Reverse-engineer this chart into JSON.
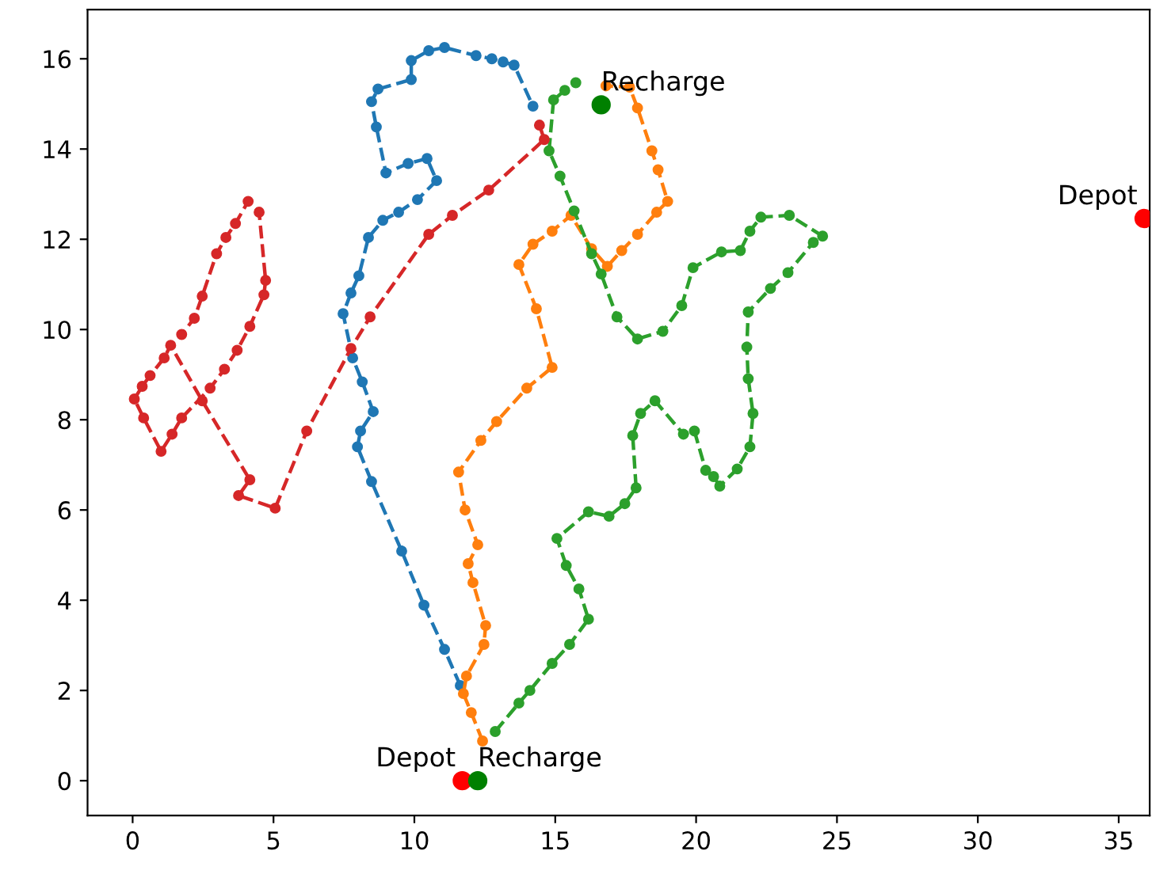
{
  "chart_data": {
    "type": "line",
    "marker": "circle",
    "line_style": "dashed",
    "grid": false,
    "xlim": [
      -1.6,
      36.1
    ],
    "ylim": [
      -0.77,
      17.09
    ],
    "xticks": [
      0,
      5,
      10,
      15,
      20,
      25,
      30,
      35
    ],
    "yticks": [
      0,
      2,
      4,
      6,
      8,
      10,
      12,
      14,
      16
    ],
    "series": [
      {
        "color": "#1f77b4",
        "x": [
          11.63,
          11.07,
          10.34,
          9.55,
          8.48,
          7.98,
          8.09,
          8.54,
          8.15,
          7.81,
          7.47,
          7.75,
          8.03,
          8.37,
          8.88,
          9.44,
          10.11,
          10.79,
          10.45,
          9.78,
          8.99,
          8.65,
          8.48,
          8.71,
          9.89,
          9.89,
          10.51,
          11.07,
          12.19,
          12.75,
          13.15,
          13.54,
          14.21
        ],
        "values": [
          2.11,
          2.91,
          3.89,
          5.09,
          6.63,
          7.4,
          7.75,
          8.18,
          8.84,
          9.37,
          10.35,
          10.81,
          11.19,
          12.04,
          12.42,
          12.6,
          12.88,
          13.3,
          13.79,
          13.68,
          13.47,
          14.49,
          15.05,
          15.33,
          15.54,
          15.96,
          16.18,
          16.25,
          16.07,
          16.0,
          15.93,
          15.86,
          14.95
        ]
      },
      {
        "color": "#ff7f0e",
        "x": [
          12.42,
          12.02,
          11.74,
          11.85,
          12.47,
          12.53,
          12.08,
          11.91,
          12.25,
          11.8,
          11.57,
          12.36,
          12.92,
          13.99,
          14.89,
          14.33,
          13.71,
          14.21,
          14.89,
          15.56,
          16.29,
          16.85,
          17.36,
          17.92,
          18.6,
          18.99,
          18.65,
          18.43,
          17.92,
          17.64,
          16.8
        ],
        "values": [
          0.88,
          1.51,
          1.93,
          2.32,
          3.02,
          3.44,
          4.39,
          4.81,
          5.23,
          6.0,
          6.84,
          7.54,
          7.96,
          8.7,
          9.16,
          10.46,
          11.44,
          11.89,
          12.18,
          12.53,
          11.79,
          11.4,
          11.75,
          12.11,
          12.6,
          12.84,
          13.54,
          13.96,
          14.91,
          15.37,
          15.4
        ]
      },
      {
        "color": "#2ca02c",
        "x": [
          12.87,
          13.71,
          14.1,
          14.89,
          15.51,
          16.18,
          15.84,
          15.39,
          15.06,
          16.18,
          16.91,
          17.47,
          17.87,
          17.75,
          18.03,
          18.54,
          19.55,
          19.94,
          20.34,
          20.62,
          20.84,
          21.46,
          21.91,
          22.02,
          21.85,
          21.8,
          21.85,
          22.64,
          23.26,
          24.16,
          24.49,
          23.31,
          22.3,
          21.91,
          21.57,
          20.9,
          19.89,
          19.49,
          18.82,
          17.92,
          17.19,
          16.63,
          16.29,
          15.67,
          15.17,
          14.78,
          14.94,
          15.34,
          15.73
        ],
        "values": [
          1.09,
          1.72,
          2.0,
          2.6,
          3.02,
          3.58,
          4.25,
          4.77,
          5.37,
          5.96,
          5.86,
          6.14,
          6.49,
          7.65,
          8.14,
          8.42,
          7.68,
          7.75,
          6.88,
          6.74,
          6.53,
          6.91,
          7.4,
          8.14,
          8.91,
          9.61,
          10.39,
          10.91,
          11.26,
          11.93,
          12.07,
          12.53,
          12.49,
          12.18,
          11.75,
          11.72,
          11.37,
          10.53,
          9.96,
          9.79,
          10.28,
          11.23,
          11.68,
          12.63,
          13.4,
          13.96,
          15.09,
          15.3,
          15.47
        ]
      },
      {
        "color": "#d62728",
        "x": [
          14.44,
          14.61,
          12.64,
          11.35,
          10.51,
          8.43,
          7.75,
          6.18,
          5.06,
          3.76,
          4.16,
          2.47,
          1.35,
          1.12,
          0.62,
          0.34,
          0.06,
          0.39,
          1.01,
          1.4,
          1.74,
          2.75,
          3.26,
          3.71,
          4.16,
          4.66,
          4.72,
          4.49,
          4.1,
          3.65,
          3.31,
          2.98,
          2.47,
          2.19,
          1.74
        ],
        "values": [
          14.53,
          14.21,
          13.09,
          12.53,
          12.11,
          10.28,
          9.58,
          7.75,
          6.04,
          6.32,
          6.67,
          8.42,
          9.65,
          9.37,
          8.98,
          8.74,
          8.46,
          8.04,
          7.3,
          7.68,
          8.04,
          8.7,
          9.12,
          9.54,
          10.07,
          10.77,
          11.09,
          12.6,
          12.84,
          12.35,
          12.04,
          11.68,
          10.74,
          10.25,
          9.89
        ]
      },
      {
        "type": "scatter",
        "color": "#ff0000",
        "x": [
          11.7,
          35.9
        ],
        "values": [
          0.0,
          12.46
        ]
      },
      {
        "type": "scatter",
        "color": "#008000",
        "x": [
          12.25,
          16.63
        ],
        "values": [
          0.0,
          14.98
        ]
      }
    ],
    "annotations": [
      {
        "text": "Depot",
        "x": 11.7,
        "y": 0.0
      },
      {
        "text": "Recharge",
        "x": 12.25,
        "y": 0.0
      },
      {
        "text": "Depot",
        "x": 35.9,
        "y": 12.46
      },
      {
        "text": "Recharge",
        "x": 16.63,
        "y": 14.98
      }
    ]
  }
}
